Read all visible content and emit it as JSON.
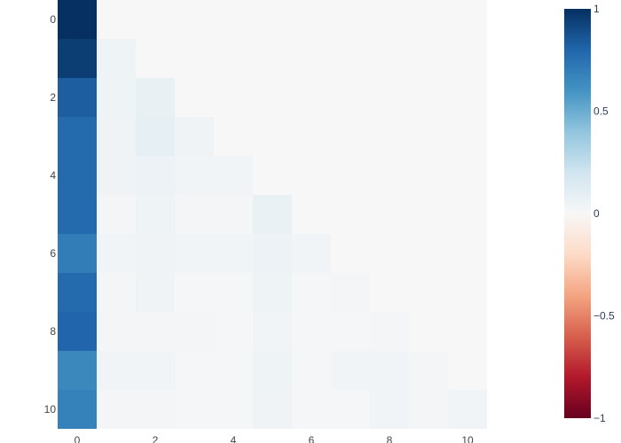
{
  "chart_data": {
    "type": "heatmap",
    "title": "",
    "xlabel": "",
    "ylabel": "",
    "x": [
      0,
      1,
      2,
      3,
      4,
      5,
      6,
      7,
      8,
      9,
      10
    ],
    "y": [
      0,
      1,
      2,
      3,
      4,
      5,
      6,
      7,
      8,
      9,
      10
    ],
    "x_ticks": [
      "0",
      "2",
      "4",
      "6",
      "8",
      "10"
    ],
    "y_ticks": [
      "0",
      "2",
      "4",
      "6",
      "8",
      "10"
    ],
    "lower_triangle_only": true,
    "values": [
      [
        1.0
      ],
      [
        0.95,
        0.05
      ],
      [
        0.83,
        0.05,
        0.08
      ],
      [
        0.78,
        0.04,
        0.09,
        0.04
      ],
      [
        0.78,
        0.04,
        0.06,
        0.03,
        0.03
      ],
      [
        0.78,
        0.02,
        0.05,
        0.02,
        0.02,
        0.07
      ],
      [
        0.7,
        0.03,
        0.04,
        0.03,
        0.03,
        0.06,
        0.03
      ],
      [
        0.78,
        0.02,
        0.04,
        0.01,
        0.01,
        0.05,
        0.01,
        0.02
      ],
      [
        0.8,
        0.02,
        0.02,
        0.02,
        0.01,
        0.03,
        0.01,
        0.01,
        0.02
      ],
      [
        0.65,
        0.03,
        0.03,
        0.01,
        0.01,
        0.05,
        0.01,
        0.03,
        0.03,
        0.02
      ],
      [
        0.68,
        0.02,
        0.02,
        0.01,
        0.01,
        0.04,
        0.01,
        0.01,
        0.03,
        0.02,
        0.03
      ]
    ],
    "colorscale": "RdBu",
    "zlim": [
      -1,
      1
    ],
    "colorbar": {
      "ticks": [
        "1",
        "0.5",
        "0",
        "−0.5",
        "−1"
      ],
      "tick_values": [
        1,
        0.5,
        0,
        -0.5,
        -1
      ]
    },
    "grid": false,
    "background": "#f7f7f7"
  }
}
